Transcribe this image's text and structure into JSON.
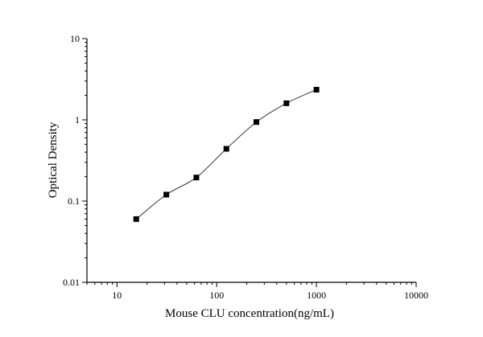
{
  "chart_data": {
    "type": "scatter",
    "title": "",
    "xlabel": "Mouse CLU concentration(ng/mL)",
    "ylabel": "Optical Density",
    "x_scale": "log",
    "y_scale": "log",
    "xlim": [
      5,
      10000
    ],
    "ylim": [
      0.01,
      10
    ],
    "x_ticks": [
      10,
      100,
      1000,
      10000
    ],
    "x_tick_labels": [
      "10",
      "100",
      "1000",
      "10000"
    ],
    "y_ticks": [
      0.01,
      0.1,
      1,
      10
    ],
    "y_tick_labels": [
      "0.01",
      "0.1",
      "1",
      "10"
    ],
    "grid": false,
    "legend": "none",
    "marker": "square",
    "fit_curve": true,
    "series": [
      {
        "x": [
          15.6,
          31.25,
          62.5,
          125,
          250,
          500,
          1000
        ],
        "y": [
          0.06,
          0.12,
          0.195,
          0.44,
          0.94,
          1.6,
          2.35
        ]
      }
    ]
  }
}
